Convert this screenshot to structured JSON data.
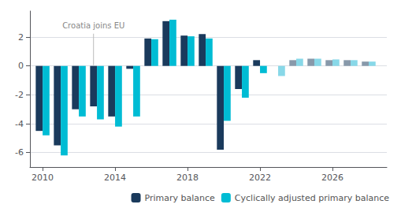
{
  "chart_data": {
    "type": "bar",
    "x": [
      2010,
      2011,
      2012,
      2013,
      2014,
      2015,
      2016,
      2017,
      2018,
      2019,
      2020,
      2021,
      2022,
      2023,
      2024,
      2025,
      2026,
      2027,
      2028
    ],
    "series": [
      {
        "name": "Primary balance",
        "color": "#1a3a5c",
        "colors": [
          "#1a3a5c",
          "#1a3a5c",
          "#1a3a5c",
          "#1a3a5c",
          "#1a3a5c",
          "#1a3a5c",
          "#1a3a5c",
          "#1a3a5c",
          "#1a3a5c",
          "#1a3a5c",
          "#1a3a5c",
          "#1a3a5c",
          "#1a3a5c",
          "#8899aa",
          "#8899aa",
          "#8899aa",
          "#8899aa",
          "#8899aa",
          "#8899aa"
        ],
        "values": [
          -4.5,
          -5.5,
          -3.0,
          -2.8,
          -3.5,
          -0.2,
          1.9,
          3.1,
          2.1,
          2.2,
          -5.8,
          -1.6,
          0.4,
          0.0,
          0.4,
          0.5,
          0.4,
          0.4,
          0.3
        ]
      },
      {
        "name": "Cyclically adjusted primary balance",
        "color": "#00bcd4",
        "colors": [
          "#00bcd4",
          "#00bcd4",
          "#00bcd4",
          "#00bcd4",
          "#00bcd4",
          "#00bcd4",
          "#00bcd4",
          "#00bcd4",
          "#00bcd4",
          "#00bcd4",
          "#00bcd4",
          "#00bcd4",
          "#00bcd4",
          "#88d8e8",
          "#88d8e8",
          "#88d8e8",
          "#88d8e8",
          "#88d8e8",
          "#88d8e8"
        ],
        "values": [
          -4.8,
          -6.2,
          -3.5,
          -3.7,
          -4.2,
          -3.5,
          1.85,
          3.2,
          2.05,
          1.9,
          -3.8,
          -2.2,
          -0.5,
          -0.7,
          0.5,
          0.5,
          0.45,
          0.4,
          0.3
        ]
      }
    ],
    "xlim": [
      2009.3,
      2029.0
    ],
    "xticks": [
      2010,
      2014,
      2018,
      2022,
      2026
    ],
    "ylim": [
      -7,
      3.8
    ],
    "yticks": [
      -6,
      -4,
      -2,
      0,
      2
    ],
    "grid": true,
    "legend": "lower right",
    "annotations": [
      {
        "text": "Croatia joins EU",
        "x": 2013,
        "y": 0.05
      }
    ]
  }
}
